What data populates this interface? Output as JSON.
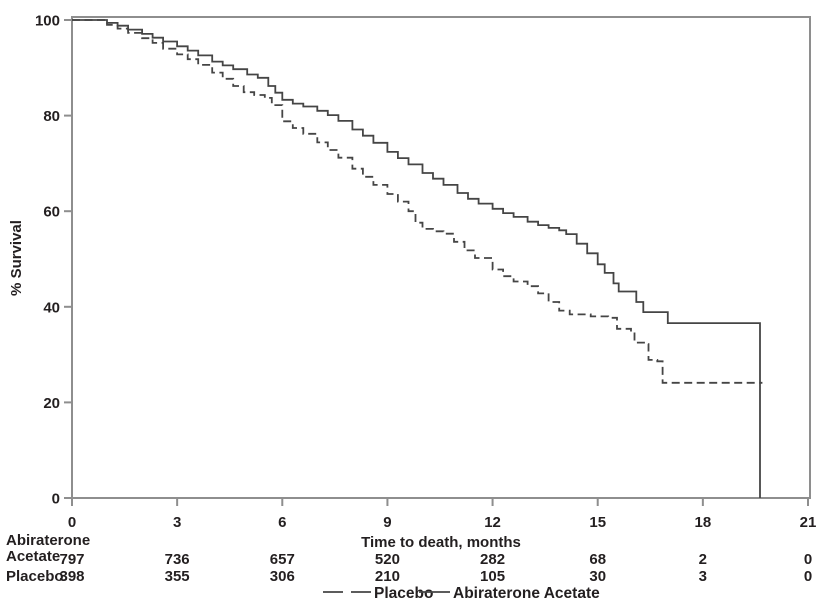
{
  "chart_data": {
    "type": "line",
    "subtype": "kaplan-meier-step",
    "title": "",
    "xlabel": "Time to death, months",
    "ylabel": "% Survival",
    "xlim": [
      0,
      21
    ],
    "ylim": [
      0,
      100
    ],
    "xticks": [
      0,
      3,
      6,
      9,
      12,
      15,
      18,
      21
    ],
    "yticks": [
      100,
      80,
      60,
      40,
      20,
      0
    ],
    "grid": false,
    "legend_position": "bottom-center",
    "legend": [
      {
        "label": "Placebo",
        "style": "dashed"
      },
      {
        "label": "Abiraterone Acetate",
        "style": "solid"
      }
    ],
    "series": [
      {
        "name": "Abiraterone Acetate",
        "style": "solid",
        "points": [
          [
            0,
            100
          ],
          [
            0.8,
            100
          ],
          [
            1.0,
            99.4
          ],
          [
            1.3,
            98.8
          ],
          [
            1.6,
            98.0
          ],
          [
            2.0,
            97.1
          ],
          [
            2.3,
            96.3
          ],
          [
            2.6,
            95.5
          ],
          [
            3.0,
            94.5
          ],
          [
            3.3,
            93.6
          ],
          [
            3.6,
            92.6
          ],
          [
            4.0,
            91.3
          ],
          [
            4.3,
            90.5
          ],
          [
            4.6,
            89.7
          ],
          [
            5.0,
            88.6
          ],
          [
            5.3,
            87.9
          ],
          [
            5.6,
            86.2
          ],
          [
            5.8,
            84.8
          ],
          [
            6.0,
            83.3
          ],
          [
            6.3,
            82.5
          ],
          [
            6.6,
            81.9
          ],
          [
            7.0,
            81.0
          ],
          [
            7.3,
            80.1
          ],
          [
            7.6,
            78.9
          ],
          [
            8.0,
            77.1
          ],
          [
            8.3,
            75.8
          ],
          [
            8.6,
            74.3
          ],
          [
            9.0,
            72.4
          ],
          [
            9.3,
            71.1
          ],
          [
            9.6,
            69.8
          ],
          [
            10.0,
            68.0
          ],
          [
            10.3,
            66.8
          ],
          [
            10.6,
            65.5
          ],
          [
            11.0,
            63.8
          ],
          [
            11.3,
            62.6
          ],
          [
            11.6,
            61.6
          ],
          [
            12.0,
            60.5
          ],
          [
            12.3,
            59.6
          ],
          [
            12.6,
            58.8
          ],
          [
            13.0,
            57.8
          ],
          [
            13.3,
            57.1
          ],
          [
            13.6,
            56.5
          ],
          [
            13.9,
            56.0
          ],
          [
            14.1,
            55.2
          ],
          [
            14.4,
            53.2
          ],
          [
            14.7,
            51.2
          ],
          [
            15.0,
            48.9
          ],
          [
            15.2,
            47.1
          ],
          [
            15.45,
            44.9
          ],
          [
            15.6,
            43.2
          ],
          [
            16.1,
            41.0
          ],
          [
            16.3,
            38.9
          ],
          [
            17.0,
            36.6
          ],
          [
            19.63,
            36.6
          ],
          [
            19.63,
            0
          ]
        ]
      },
      {
        "name": "Placebo",
        "style": "dashed",
        "points": [
          [
            0,
            100
          ],
          [
            0.8,
            100
          ],
          [
            1.0,
            99.0
          ],
          [
            1.3,
            98.2
          ],
          [
            1.6,
            97.3
          ],
          [
            2.0,
            96.2
          ],
          [
            2.3,
            95.2
          ],
          [
            2.6,
            94.0
          ],
          [
            3.0,
            92.8
          ],
          [
            3.3,
            91.8
          ],
          [
            3.6,
            90.6
          ],
          [
            4.0,
            89.0
          ],
          [
            4.3,
            87.7
          ],
          [
            4.6,
            86.2
          ],
          [
            4.9,
            84.9
          ],
          [
            5.2,
            84.3
          ],
          [
            5.5,
            83.7
          ],
          [
            5.7,
            82.2
          ],
          [
            6.0,
            78.8
          ],
          [
            6.3,
            77.4
          ],
          [
            6.6,
            76.2
          ],
          [
            7.0,
            74.4
          ],
          [
            7.3,
            72.8
          ],
          [
            7.6,
            71.2
          ],
          [
            8.0,
            68.9
          ],
          [
            8.3,
            67.2
          ],
          [
            8.6,
            65.5
          ],
          [
            9.0,
            63.6
          ],
          [
            9.3,
            62.0
          ],
          [
            9.6,
            60.0
          ],
          [
            9.8,
            57.6
          ],
          [
            10.0,
            56.3
          ],
          [
            10.3,
            55.8
          ],
          [
            10.6,
            55.3
          ],
          [
            10.9,
            53.6
          ],
          [
            11.2,
            51.8
          ],
          [
            11.5,
            50.2
          ],
          [
            12.0,
            47.8
          ],
          [
            12.3,
            46.4
          ],
          [
            12.6,
            45.3
          ],
          [
            13.0,
            44.3
          ],
          [
            13.3,
            42.8
          ],
          [
            13.6,
            41.0
          ],
          [
            13.9,
            39.2
          ],
          [
            14.2,
            38.4
          ],
          [
            14.8,
            38.0
          ],
          [
            15.3,
            37.7
          ],
          [
            15.55,
            35.4
          ],
          [
            15.95,
            34.7
          ],
          [
            16.05,
            32.5
          ],
          [
            16.35,
            32.2
          ],
          [
            16.45,
            28.9
          ],
          [
            16.7,
            28.6
          ],
          [
            16.85,
            24.1
          ],
          [
            19.7,
            24.1
          ]
        ]
      }
    ],
    "at_risk": {
      "row_labels": [
        "Abiraterone Acetate",
        "Placebo"
      ],
      "columns": [
        0,
        3,
        6,
        9,
        12,
        15,
        18,
        21
      ],
      "values": [
        [
          797,
          736,
          657,
          520,
          282,
          68,
          2,
          0
        ],
        [
          398,
          355,
          306,
          210,
          105,
          30,
          3,
          0
        ]
      ]
    }
  },
  "labels": {
    "abiraterone_line1": "Abiraterone",
    "abiraterone_line2": "Acetate",
    "placebo_row": "Placebo"
  },
  "colors": {
    "curve": "#454545",
    "frame": "#8e8e8e",
    "text": "#231f20"
  }
}
